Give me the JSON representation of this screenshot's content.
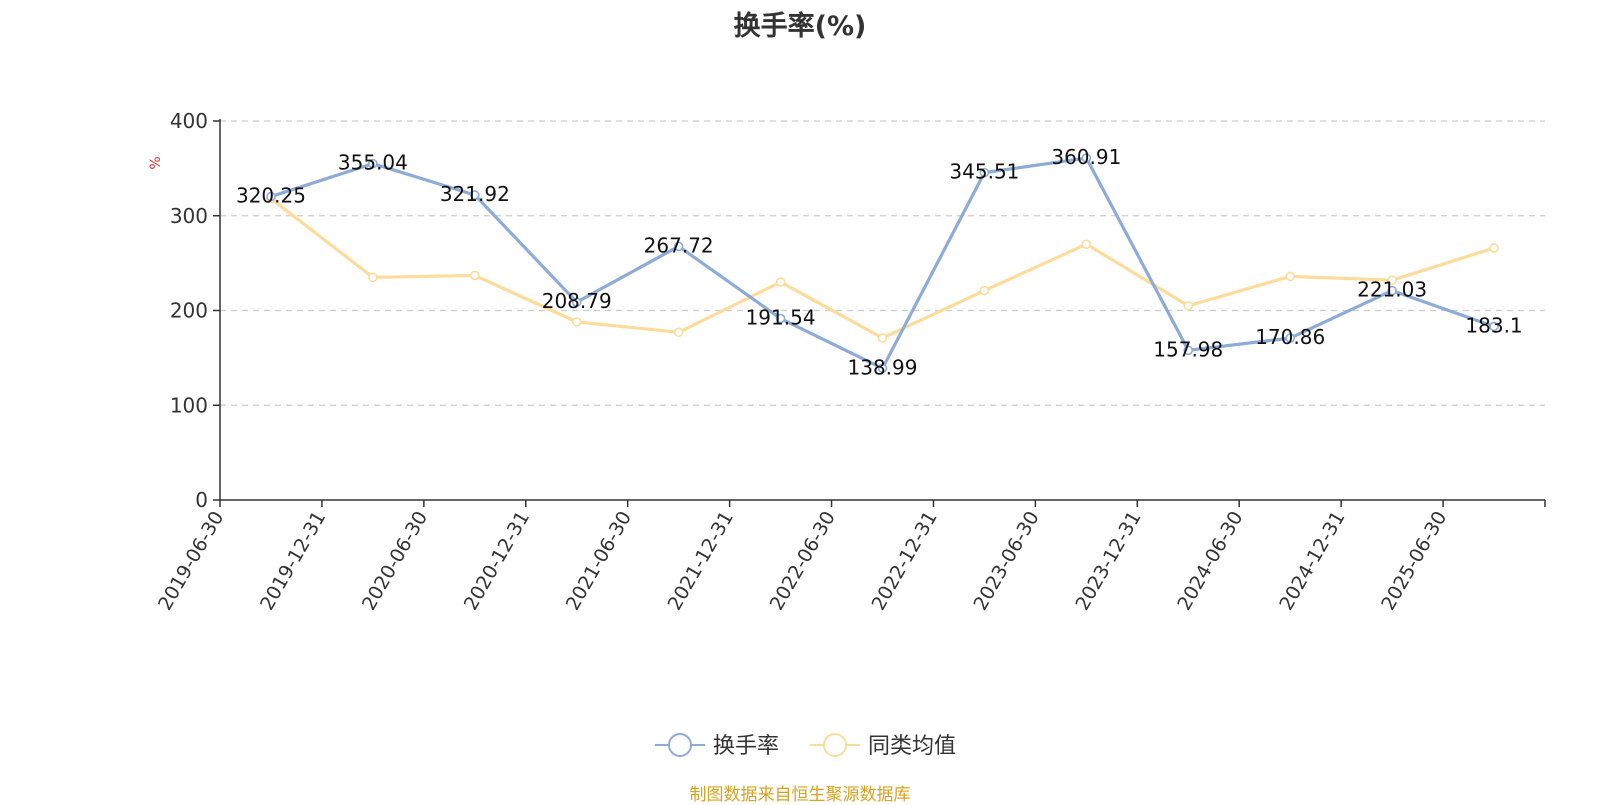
{
  "chart_data": {
    "type": "line",
    "title": "换手率(%)",
    "ylabel": "%",
    "xlabel": "",
    "ylim": [
      0,
      400
    ],
    "yticks": [
      0,
      100,
      200,
      300,
      400
    ],
    "grid": true,
    "legend_position": "bottom-center",
    "categories": [
      "2019-06-30",
      "2019-12-31",
      "2020-06-30",
      "2020-12-31",
      "2021-06-30",
      "2021-12-31",
      "2022-06-30",
      "2022-12-31",
      "2023-06-30",
      "2023-12-31",
      "2024-06-30",
      "2024-12-31",
      "2025-06-30"
    ],
    "series": [
      {
        "name": "换手率",
        "color": "#8eabd8",
        "show_labels": true,
        "values": [
          320.25,
          355.04,
          321.92,
          208.79,
          267.72,
          191.54,
          138.99,
          345.51,
          360.91,
          157.98,
          170.86,
          221.03,
          183.1
        ],
        "labels": [
          "320.25",
          "355.04",
          "321.92",
          "208.79",
          "267.72",
          "191.54",
          "138.99",
          "345.51",
          "360.91",
          "157.98",
          "170.86",
          "221.03",
          "183.1"
        ]
      },
      {
        "name": "同类均值",
        "color": "#fddc9b",
        "show_labels": false,
        "values": [
          318,
          235,
          237,
          188,
          177,
          230,
          171,
          221,
          270,
          205,
          236,
          232,
          266
        ]
      }
    ]
  },
  "footer": {
    "source_note": "制图数据来自恒生聚源数据库"
  }
}
